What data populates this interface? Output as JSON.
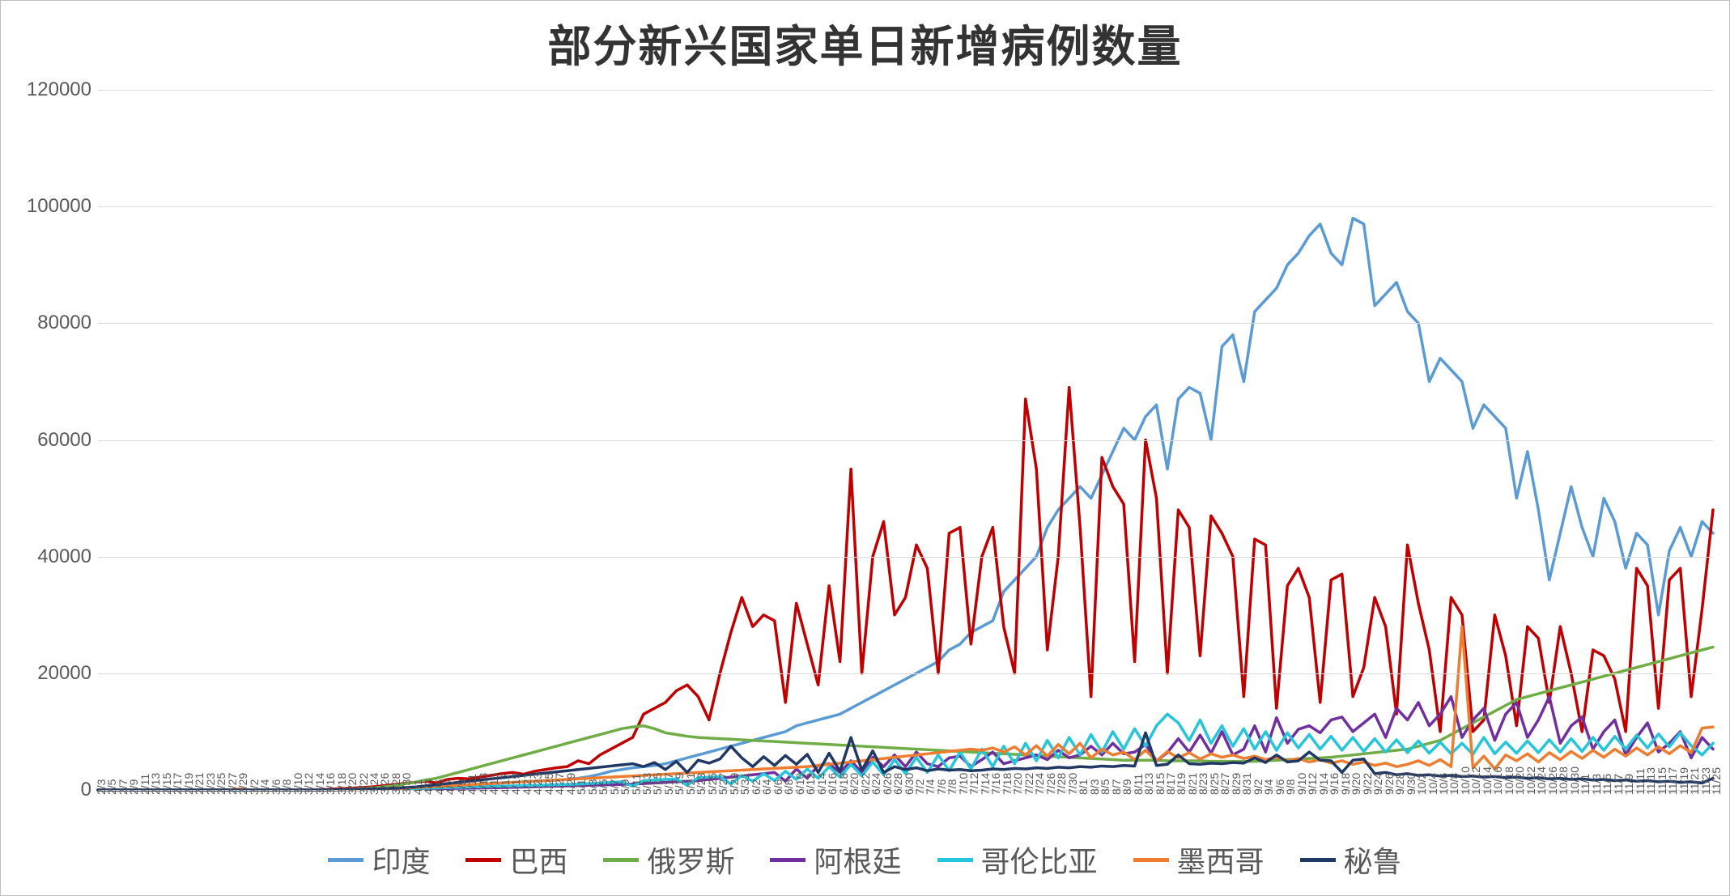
{
  "chart": {
    "type": "line",
    "title": "部分新兴国家单日新增病例数量",
    "title_fontsize": 54,
    "background_color": "#ffffff",
    "border_color": "#bfbfbf",
    "grid_color": "#d9d9d9",
    "axis_label_color": "#595959",
    "line_width": 3.5,
    "ylim": [
      0,
      120000
    ],
    "ytick_step": 20000,
    "yticks": [
      0,
      20000,
      40000,
      60000,
      80000,
      100000,
      120000
    ],
    "x_labels": [
      "2/3",
      "2/5",
      "2/7",
      "2/9",
      "2/11",
      "2/13",
      "2/15",
      "2/17",
      "2/19",
      "2/21",
      "2/23",
      "2/25",
      "2/27",
      "2/29",
      "3/2",
      "3/4",
      "3/6",
      "3/8",
      "3/10",
      "3/12",
      "3/14",
      "3/16",
      "3/18",
      "3/20",
      "3/22",
      "3/24",
      "3/26",
      "3/28",
      "3/30",
      "4/1",
      "4/3",
      "4/5",
      "4/7",
      "4/9",
      "4/11",
      "4/13",
      "4/15",
      "4/17",
      "4/19",
      "4/21",
      "4/23",
      "4/25",
      "4/27",
      "4/29",
      "5/1",
      "5/3",
      "5/5",
      "5/7",
      "5/9",
      "5/11",
      "5/13",
      "5/15",
      "5/17",
      "5/19",
      "5/21",
      "5/23",
      "5/25",
      "5/27",
      "5/29",
      "5/31",
      "6/2",
      "6/4",
      "6/6",
      "6/8",
      "6/10",
      "6/12",
      "6/14",
      "6/16",
      "6/18",
      "6/20",
      "6/22",
      "6/24",
      "6/26",
      "6/28",
      "6/30",
      "7/2",
      "7/4",
      "7/6",
      "7/8",
      "7/10",
      "7/12",
      "7/14",
      "7/16",
      "7/18",
      "7/20",
      "7/22",
      "7/24",
      "7/26",
      "7/28",
      "7/30",
      "8/1",
      "8/3",
      "8/5",
      "8/7",
      "8/9",
      "8/11",
      "8/13",
      "8/15",
      "8/17",
      "8/19",
      "8/21",
      "8/23",
      "8/25",
      "8/27",
      "8/29",
      "8/31",
      "9/2",
      "9/4",
      "9/6",
      "9/8",
      "9/10",
      "9/12",
      "9/14",
      "9/16",
      "9/18",
      "9/20",
      "9/22",
      "9/24",
      "9/26",
      "9/28",
      "9/30",
      "10/2",
      "10/4",
      "10/6",
      "10/8",
      "10/10",
      "10/12",
      "10/14",
      "10/16",
      "10/18",
      "10/20",
      "10/22",
      "10/24",
      "10/26",
      "10/28",
      "10/30",
      "11/1",
      "11/3",
      "11/5",
      "11/7",
      "11/9",
      "11/11",
      "11/13",
      "11/15",
      "11/17",
      "11/19",
      "11/21",
      "11/23",
      "11/25"
    ],
    "series": [
      {
        "name": "印度",
        "color": "#5b9bd5",
        "values": [
          0,
          0,
          0,
          0,
          0,
          0,
          0,
          0,
          0,
          0,
          0,
          0,
          0,
          0,
          0,
          0,
          0,
          0,
          5,
          10,
          20,
          30,
          50,
          80,
          100,
          150,
          200,
          250,
          300,
          400,
          500,
          600,
          700,
          800,
          900,
          1000,
          1100,
          1200,
          1300,
          1400,
          1500,
          1600,
          1700,
          1800,
          2000,
          2300,
          2700,
          3200,
          3500,
          3800,
          4000,
          4200,
          4500,
          5000,
          5500,
          6000,
          6500,
          7000,
          7500,
          8000,
          8500,
          9000,
          9500,
          10000,
          11000,
          11500,
          12000,
          12500,
          13000,
          14000,
          15000,
          16000,
          17000,
          18000,
          19000,
          20000,
          21000,
          22000,
          24000,
          25000,
          27000,
          28000,
          29000,
          34000,
          36000,
          38000,
          40000,
          45000,
          48000,
          50000,
          52000,
          50000,
          54000,
          58000,
          62000,
          60000,
          64000,
          66000,
          55000,
          67000,
          69000,
          68000,
          60000,
          76000,
          78000,
          70000,
          82000,
          84000,
          86000,
          90000,
          92000,
          95000,
          97000,
          92000,
          90000,
          98000,
          97000,
          83000,
          85000,
          87000,
          82000,
          80000,
          70000,
          74000,
          72000,
          70000,
          62000,
          66000,
          64000,
          62000,
          50000,
          58000,
          48000,
          36000,
          44000,
          52000,
          45000,
          40000,
          50000,
          46000,
          38000,
          44000,
          42000,
          30000,
          41000,
          45000,
          40000,
          46000,
          44000
        ]
      },
      {
        "name": "巴西",
        "color": "#c00000",
        "values": [
          0,
          0,
          0,
          0,
          0,
          0,
          0,
          0,
          0,
          0,
          0,
          0,
          0,
          0,
          0,
          0,
          0,
          0,
          0,
          0,
          50,
          100,
          200,
          300,
          400,
          500,
          700,
          900,
          1100,
          1300,
          1500,
          1200,
          1800,
          2000,
          1900,
          2200,
          2500,
          2800,
          3000,
          2700,
          3200,
          3500,
          3800,
          4000,
          5000,
          4500,
          6000,
          7000,
          8000,
          9000,
          13000,
          14000,
          15000,
          17000,
          18000,
          16000,
          12000,
          20000,
          27000,
          33000,
          28000,
          30000,
          29000,
          15000,
          32000,
          25000,
          18000,
          35000,
          22000,
          55000,
          20000,
          40000,
          46000,
          30000,
          33000,
          42000,
          38000,
          20000,
          44000,
          45000,
          25000,
          40000,
          45000,
          28000,
          20000,
          67000,
          55000,
          24000,
          40000,
          69000,
          45000,
          16000,
          57000,
          52000,
          49000,
          22000,
          60000,
          50000,
          20000,
          48000,
          45000,
          23000,
          47000,
          44000,
          40000,
          16000,
          43000,
          42000,
          14000,
          35000,
          38000,
          33000,
          15000,
          36000,
          37000,
          16000,
          21000,
          33000,
          28000,
          13000,
          42000,
          32000,
          24000,
          10000,
          33000,
          30000,
          10000,
          12000,
          30000,
          23000,
          11000,
          28000,
          26000,
          15000,
          28000,
          20000,
          10000,
          24000,
          23000,
          19000,
          10000,
          38000,
          35000,
          14000,
          36000,
          38000,
          16000,
          31000,
          48000
        ]
      },
      {
        "name": "俄罗斯",
        "color": "#70ad47",
        "values": [
          0,
          0,
          0,
          0,
          0,
          0,
          0,
          0,
          0,
          0,
          0,
          0,
          0,
          0,
          0,
          0,
          0,
          0,
          0,
          10,
          20,
          30,
          50,
          100,
          200,
          300,
          500,
          700,
          1000,
          1300,
          1700,
          2000,
          2500,
          3000,
          3500,
          4000,
          4500,
          5000,
          5500,
          6000,
          6500,
          7000,
          7500,
          8000,
          8500,
          9000,
          9500,
          10000,
          10500,
          10800,
          11000,
          10500,
          9800,
          9500,
          9200,
          9000,
          8900,
          8800,
          8700,
          8600,
          8500,
          8400,
          8300,
          8200,
          8100,
          8000,
          7900,
          7800,
          7700,
          7600,
          7500,
          7400,
          7300,
          7200,
          7100,
          7000,
          6900,
          6800,
          6700,
          6600,
          6500,
          6400,
          6300,
          6200,
          6100,
          6000,
          5900,
          5800,
          5700,
          5600,
          5500,
          5400,
          5300,
          5200,
          5100,
          5100,
          5100,
          5100,
          5000,
          5000,
          5000,
          5000,
          4900,
          4900,
          4900,
          4900,
          4900,
          5000,
          5100,
          5200,
          5300,
          5400,
          5500,
          5600,
          5800,
          6000,
          6200,
          6400,
          6600,
          6800,
          7000,
          7500,
          8000,
          8500,
          9500,
          10500,
          11500,
          12500,
          13500,
          14500,
          15500,
          16000,
          16500,
          17000,
          17500,
          18000,
          18500,
          19000,
          19500,
          20000,
          20500,
          21000,
          21500,
          22000,
          22500,
          23000,
          23500,
          24000,
          24500
        ]
      },
      {
        "name": "阿根廷",
        "color": "#7030a0",
        "values": [
          0,
          0,
          0,
          0,
          0,
          0,
          0,
          0,
          0,
          0,
          0,
          0,
          0,
          0,
          0,
          0,
          0,
          0,
          0,
          0,
          0,
          10,
          20,
          40,
          60,
          80,
          100,
          120,
          150,
          180,
          200,
          220,
          250,
          280,
          300,
          330,
          360,
          400,
          450,
          500,
          550,
          600,
          650,
          700,
          750,
          800,
          850,
          900,
          950,
          1000,
          1100,
          1200,
          1300,
          1400,
          1500,
          1600,
          1800,
          2000,
          2200,
          2400,
          2600,
          2800,
          3000,
          1500,
          3600,
          2000,
          4200,
          4500,
          3000,
          5000,
          3000,
          5600,
          4000,
          6000,
          4000,
          6500,
          4500,
          4000,
          5500,
          5800,
          4000,
          5200,
          6500,
          4500,
          5000,
          5500,
          6000,
          5200,
          6800,
          5500,
          6000,
          7500,
          6000,
          8000,
          6200,
          6500,
          7800,
          5000,
          6400,
          8800,
          6500,
          9400,
          6300,
          10000,
          6000,
          7000,
          11000,
          6500,
          12400,
          8000,
          10400,
          11000,
          9800,
          12000,
          12500,
          10000,
          11500,
          13000,
          9000,
          14000,
          12000,
          15000,
          11000,
          13000,
          16000,
          9000,
          12000,
          14000,
          8500,
          13000,
          15000,
          9000,
          12000,
          16000,
          8000,
          11000,
          12500,
          7000,
          10000,
          12000,
          6000,
          9000,
          11500,
          6500,
          8000,
          10000,
          5500,
          9000,
          7000
        ]
      },
      {
        "name": "哥伦比亚",
        "color": "#26c6da",
        "values": [
          0,
          0,
          0,
          0,
          0,
          0,
          0,
          0,
          0,
          0,
          0,
          0,
          0,
          0,
          0,
          0,
          0,
          0,
          0,
          0,
          0,
          0,
          10,
          30,
          50,
          80,
          120,
          150,
          200,
          250,
          300,
          350,
          400,
          450,
          500,
          550,
          600,
          650,
          700,
          750,
          800,
          850,
          900,
          950,
          1000,
          1100,
          1200,
          1300,
          1400,
          640,
          1600,
          1700,
          1800,
          1900,
          800,
          2100,
          2200,
          2300,
          1000,
          2500,
          1500,
          2800,
          1600,
          3200,
          1800,
          3600,
          2000,
          4000,
          2200,
          4400,
          2400,
          4800,
          2600,
          5200,
          2800,
          5600,
          3000,
          6000,
          3300,
          6500,
          3600,
          7000,
          4000,
          7500,
          4500,
          8000,
          5000,
          8500,
          5500,
          9000,
          6000,
          9500,
          6500,
          10000,
          7000,
          10500,
          7500,
          11000,
          13000,
          11500,
          8500,
          12000,
          8000,
          11000,
          7500,
          10500,
          7000,
          10000,
          6800,
          9800,
          7200,
          9500,
          7000,
          9200,
          6800,
          9000,
          6600,
          8800,
          6500,
          8600,
          6400,
          8400,
          6300,
          8200,
          6200,
          8000,
          6100,
          9000,
          6200,
          8200,
          6300,
          8400,
          6400,
          8600,
          6500,
          8800,
          6600,
          9000,
          6800,
          9200,
          7000,
          9400,
          7200,
          9600,
          7400,
          9800,
          7600,
          6000,
          8000
        ]
      },
      {
        "name": "墨西哥",
        "color": "#ed7d31",
        "values": [
          0,
          0,
          0,
          0,
          0,
          0,
          0,
          0,
          0,
          0,
          0,
          0,
          0,
          200,
          0,
          0,
          0,
          0,
          0,
          0,
          0,
          0,
          10,
          30,
          50,
          100,
          150,
          200,
          300,
          400,
          500,
          600,
          700,
          800,
          900,
          1000,
          1100,
          1200,
          1300,
          1400,
          1500,
          1600,
          1700,
          1800,
          1900,
          2000,
          2100,
          2200,
          2300,
          2400,
          2500,
          2600,
          2700,
          2800,
          2900,
          3000,
          3100,
          3200,
          3300,
          3400,
          3500,
          3600,
          3700,
          3800,
          3900,
          4000,
          4200,
          4400,
          4600,
          4800,
          5000,
          5200,
          5400,
          5600,
          5800,
          6000,
          6200,
          6400,
          6600,
          6800,
          7000,
          6800,
          7200,
          6500,
          7400,
          6000,
          7600,
          5800,
          7800,
          6200,
          8000,
          5500,
          7000,
          6000,
          6500,
          5200,
          6800,
          5000,
          6600,
          5500,
          6400,
          5300,
          6200,
          5600,
          6000,
          5400,
          5800,
          5200,
          5600,
          5000,
          5400,
          4800,
          5200,
          4600,
          5000,
          4400,
          4800,
          4200,
          4600,
          4000,
          4400,
          5000,
          4200,
          5200,
          4000,
          28000,
          3800,
          5800,
          3600,
          6000,
          5000,
          6200,
          4800,
          6400,
          5200,
          6600,
          5400,
          6800,
          5600,
          7000,
          5800,
          7200,
          6000,
          7400,
          6200,
          7600,
          6400,
          10600,
          10800
        ]
      },
      {
        "name": "秘鲁",
        "color": "#1f3864",
        "values": [
          0,
          0,
          0,
          0,
          0,
          0,
          0,
          0,
          0,
          0,
          0,
          0,
          0,
          0,
          0,
          0,
          0,
          0,
          0,
          0,
          0,
          10,
          30,
          60,
          100,
          150,
          200,
          300,
          400,
          500,
          700,
          900,
          1100,
          1300,
          1500,
          1700,
          1900,
          2100,
          2300,
          2500,
          2700,
          2900,
          3100,
          3300,
          3500,
          3700,
          3900,
          4100,
          4300,
          4500,
          4000,
          4700,
          3500,
          4900,
          3000,
          5100,
          4600,
          5300,
          7500,
          5500,
          4000,
          5700,
          4200,
          5900,
          4400,
          6100,
          3000,
          6300,
          3200,
          9000,
          3400,
          6700,
          3000,
          4000,
          3500,
          3800,
          3300,
          3600,
          3400,
          3500,
          3300,
          3400,
          3600,
          3500,
          3700,
          3600,
          3800,
          3700,
          3900,
          3800,
          4000,
          3900,
          4100,
          4000,
          4200,
          4100,
          9800,
          4200,
          4400,
          6000,
          4500,
          4400,
          4600,
          4500,
          4700,
          4600,
          5500,
          4700,
          6000,
          4800,
          5000,
          6500,
          5100,
          5000,
          3000,
          5100,
          5300,
          2800,
          3000,
          2600,
          2800,
          2500,
          2600,
          2400,
          2500,
          2300,
          2400,
          2200,
          2300,
          2100,
          2200,
          2000,
          2100,
          1900,
          2000,
          1800,
          1900,
          1700,
          1800,
          1600,
          1700,
          1500,
          1600,
          1400,
          1500,
          1300,
          1400,
          1200,
          2000
        ]
      }
    ],
    "legend": {
      "position": "bottom",
      "fontsize": 36
    }
  }
}
